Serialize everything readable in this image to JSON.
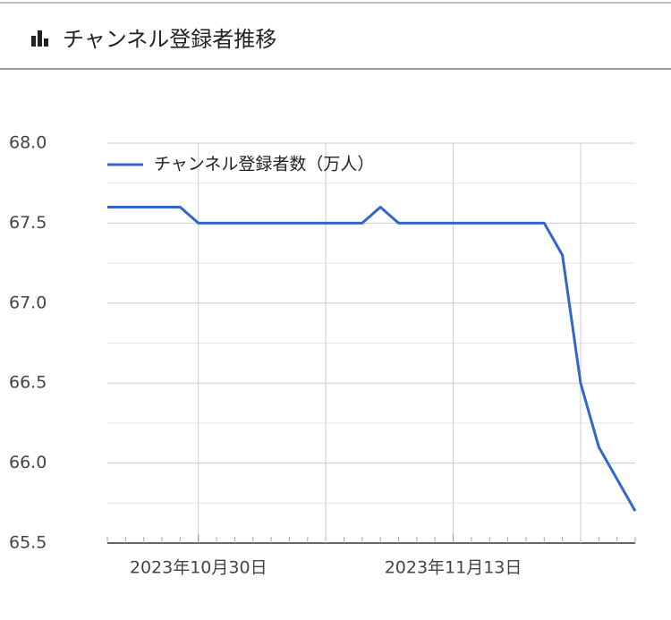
{
  "header": {
    "title": "チャンネル登録者推移"
  },
  "chart_data": {
    "type": "line",
    "x": [
      "2023-10-25",
      "2023-10-26",
      "2023-10-27",
      "2023-10-28",
      "2023-10-29",
      "2023-10-30",
      "2023-10-31",
      "2023-11-01",
      "2023-11-02",
      "2023-11-03",
      "2023-11-04",
      "2023-11-05",
      "2023-11-06",
      "2023-11-07",
      "2023-11-08",
      "2023-11-09",
      "2023-11-10",
      "2023-11-11",
      "2023-11-12",
      "2023-11-13",
      "2023-11-14",
      "2023-11-15",
      "2023-11-16",
      "2023-11-17",
      "2023-11-18",
      "2023-11-19",
      "2023-11-20",
      "2023-11-21",
      "2023-11-22",
      "2023-11-23"
    ],
    "series": [
      {
        "name": "チャンネル登録者数（万人）",
        "color": "#3366cc",
        "values": [
          67.6,
          67.6,
          67.6,
          67.6,
          67.6,
          67.5,
          67.5,
          67.5,
          67.5,
          67.5,
          67.5,
          67.5,
          67.5,
          67.5,
          67.5,
          67.6,
          67.5,
          67.5,
          67.5,
          67.5,
          67.5,
          67.5,
          67.5,
          67.5,
          67.5,
          67.3,
          66.5,
          66.1,
          65.9,
          65.7
        ]
      }
    ],
    "xlim": [
      "2023-10-25",
      "2023-11-23"
    ],
    "xticks": [
      {
        "value": "2023-10-30",
        "label": "2023年10月30日"
      },
      {
        "value": "2023-11-13",
        "label": "2023年11月13日"
      }
    ],
    "ylim": [
      65.5,
      68
    ],
    "yticks": [
      65.5,
      {
        "value": 66,
        "label": "66.0"
      },
      66.5,
      {
        "value": 67,
        "label": "67.0"
      },
      67.5,
      {
        "value": 68,
        "label": "68.0"
      }
    ],
    "grid": true,
    "legend": "top-left"
  }
}
